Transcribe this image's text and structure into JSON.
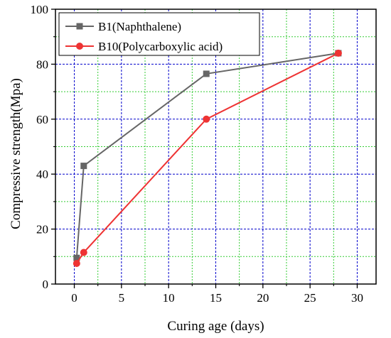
{
  "chart_data": {
    "type": "line",
    "title": "",
    "xlabel": "Curing age (days)",
    "ylabel": "Compressive strength(Mpa)",
    "xlim": [
      -2,
      32
    ],
    "ylim": [
      0,
      100
    ],
    "x_ticks": [
      0,
      5,
      10,
      15,
      20,
      25,
      30
    ],
    "y_ticks": [
      0,
      20,
      40,
      60,
      80,
      100
    ],
    "x_tick_labels": [
      "0",
      "5",
      "10",
      "15",
      "20",
      "25",
      "30"
    ],
    "y_tick_labels": [
      "0",
      "20",
      "40",
      "60",
      "80",
      "100"
    ],
    "grid": true,
    "grid_colors": {
      "major": "#0000cc",
      "minor": "#33cc33"
    },
    "legend_position": "top-left",
    "series": [
      {
        "name": "B1(Naphthalene)",
        "color": "#666666",
        "marker": "square",
        "x": [
          0.25,
          1,
          14,
          28
        ],
        "y": [
          9.5,
          43,
          76.5,
          84
        ]
      },
      {
        "name": "B10(Polycarboxylic acid)",
        "color": "#ee3333",
        "marker": "circle",
        "x": [
          0.25,
          1,
          14,
          28
        ],
        "y": [
          7.5,
          11.5,
          60,
          84
        ]
      }
    ]
  }
}
